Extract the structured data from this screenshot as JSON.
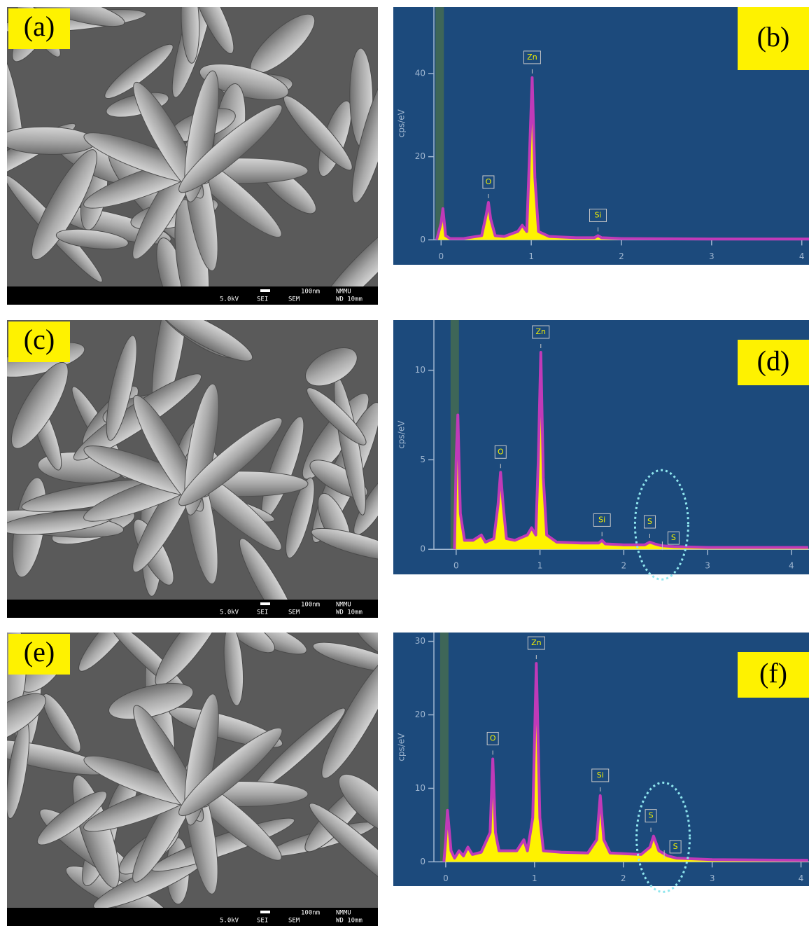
{
  "images": [
    {
      "label": "(a)",
      "scale": "100nm",
      "lab": "NMMU",
      "voltage": "5.0kV",
      "detector": "SEI",
      "mode": "SEM",
      "wd": "WD 10mm"
    },
    {
      "label": "(c)",
      "scale": "100nm",
      "lab": "NMMU",
      "voltage": "5.0kV",
      "detector": "SEI",
      "mode": "SEM",
      "wd": "WD 10mm"
    },
    {
      "label": "(e)",
      "scale": "100nm",
      "lab": "NMMU",
      "voltage": "5.0kV",
      "detector": "SEI",
      "mode": "SEM",
      "wd": "WD 10mm"
    }
  ],
  "chart_data": [
    {
      "type": "area",
      "label": "(b)",
      "y_label": "cps/eV",
      "xlim": [
        -0.53,
        4.08
      ],
      "ylim": [
        -6,
        56
      ],
      "xticks": [
        0,
        1,
        2,
        3,
        4
      ],
      "yticks": [
        0,
        20,
        40
      ],
      "x": [
        -0.05,
        0,
        0.02,
        0.05,
        0.1,
        0.25,
        0.3,
        0.45,
        0.5,
        0.525,
        0.55,
        0.6,
        0.7,
        0.85,
        0.9,
        0.95,
        0.98,
        1.01,
        1.04,
        1.08,
        1.2,
        1.5,
        1.7,
        1.74,
        1.78,
        2,
        3,
        4.08
      ],
      "values": [
        0,
        4,
        7.5,
        1,
        0.3,
        0.3,
        0.5,
        1,
        6,
        9,
        5,
        1,
        0.8,
        2,
        3.5,
        2,
        20,
        39,
        15,
        2,
        0.8,
        0.5,
        0.5,
        1,
        0.5,
        0.3,
        0.2,
        0.2
      ],
      "peaks": [
        {
          "label": "O",
          "x": 0.525,
          "y": 9
        },
        {
          "label": "Zn",
          "x": 1.01,
          "y": 39
        },
        {
          "label": "Si",
          "x": 1.74,
          "y": 1
        }
      ]
    },
    {
      "type": "area",
      "label": "(d)",
      "y_label": "cps/eV",
      "xlim": [
        -0.75,
        4.21
      ],
      "ylim": [
        -1.4,
        12.8
      ],
      "xticks": [
        0,
        1,
        2,
        3,
        4
      ],
      "yticks": [
        0,
        5,
        10
      ],
      "x": [
        -0.02,
        0,
        0.02,
        0.05,
        0.1,
        0.2,
        0.3,
        0.35,
        0.45,
        0.5,
        0.53,
        0.56,
        0.6,
        0.7,
        0.85,
        0.9,
        0.95,
        0.98,
        1.01,
        1.04,
        1.08,
        1.2,
        1.5,
        1.7,
        1.74,
        1.78,
        2,
        2.25,
        2.31,
        2.37,
        2.45,
        2.6,
        3,
        4.2
      ],
      "values": [
        0,
        5,
        7.5,
        2,
        0.5,
        0.5,
        0.8,
        0.4,
        0.6,
        2.5,
        4.3,
        2.5,
        0.6,
        0.5,
        0.8,
        1.2,
        0.8,
        5,
        11,
        4,
        0.8,
        0.4,
        0.35,
        0.35,
        0.5,
        0.3,
        0.25,
        0.25,
        0.4,
        0.3,
        0.2,
        0.15,
        0.1,
        0.1
      ],
      "peaks": [
        {
          "label": "O",
          "x": 0.53,
          "y": 4.3
        },
        {
          "label": "Zn",
          "x": 1.01,
          "y": 11
        },
        {
          "label": "Si",
          "x": 1.74,
          "y": 0.5
        },
        {
          "label": "S",
          "x": 2.31,
          "y": 0.4
        },
        {
          "label": "S",
          "x": 2.46,
          "y": 0.2
        }
      ]
    },
    {
      "type": "area",
      "label": "(f)",
      "y_label": "cps/eV",
      "xlim": [
        -0.59,
        4.09
      ],
      "ylim": [
        -3.3,
        31.2
      ],
      "xticks": [
        0,
        1,
        2,
        3,
        4
      ],
      "yticks": [
        0,
        10,
        20,
        30
      ],
      "x": [
        -0.02,
        0,
        0.02,
        0.06,
        0.1,
        0.15,
        0.2,
        0.25,
        0.3,
        0.4,
        0.5,
        0.53,
        0.56,
        0.6,
        0.8,
        0.88,
        0.92,
        0.98,
        1.02,
        1.06,
        1.1,
        1.3,
        1.6,
        1.7,
        1.74,
        1.78,
        1.85,
        2.2,
        2.3,
        2.34,
        2.4,
        2.5,
        2.6,
        3,
        4.08
      ],
      "values": [
        0,
        3,
        7,
        1.5,
        0.5,
        1.5,
        0.8,
        2,
        1,
        1.3,
        4,
        14,
        4,
        1.5,
        1.5,
        3,
        1.5,
        6,
        27,
        6,
        1.5,
        1.3,
        1.2,
        3,
        9,
        3,
        1.2,
        1,
        2,
        3.5,
        1.5,
        0.8,
        0.5,
        0.3,
        0.2
      ],
      "peaks": [
        {
          "label": "O",
          "x": 0.53,
          "y": 14
        },
        {
          "label": "Zn",
          "x": 1.02,
          "y": 27
        },
        {
          "label": "Si",
          "x": 1.74,
          "y": 9
        },
        {
          "label": "S",
          "x": 2.31,
          "y": 3.5
        },
        {
          "label": "S",
          "x": 2.46,
          "y": 1
        }
      ]
    }
  ]
}
